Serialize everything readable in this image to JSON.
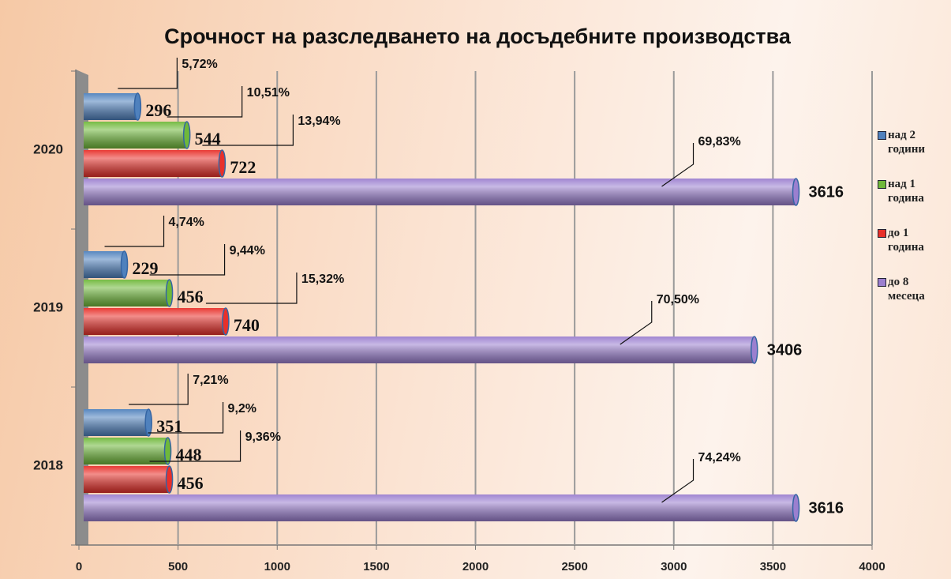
{
  "chart_data": {
    "type": "bar",
    "orientation": "horizontal",
    "title": "Срочност на разследването на досъдебните производства",
    "categories": [
      "2018",
      "2019",
      "2020"
    ],
    "series": [
      {
        "name": "над 2 години",
        "color": "#4f81bd",
        "values": [
          351,
          229,
          296
        ],
        "share_labels": [
          "7,21%",
          "4,74%",
          "5,72%"
        ]
      },
      {
        "name": "над 1 година",
        "color": "#6fb83a",
        "values": [
          448,
          456,
          544
        ],
        "share_labels": [
          "9,2%",
          "9,44%",
          "10,51%"
        ]
      },
      {
        "name": "до 1 година",
        "color": "#e8302a",
        "values": [
          456,
          740,
          722
        ],
        "share_labels": [
          "9,36%",
          "15,32%",
          "13,94%"
        ]
      },
      {
        "name": "до 8 месеца",
        "color": "#9b7fcf",
        "values": [
          3616,
          3406,
          3616
        ],
        "share_labels": [
          "74,24%",
          "70,50%",
          "69,83%"
        ]
      }
    ],
    "xlim": [
      0,
      4000
    ],
    "xticks": [
      0,
      500,
      1000,
      1500,
      2000,
      2500,
      3000,
      3500,
      4000
    ],
    "grid": true,
    "legend": "right"
  }
}
